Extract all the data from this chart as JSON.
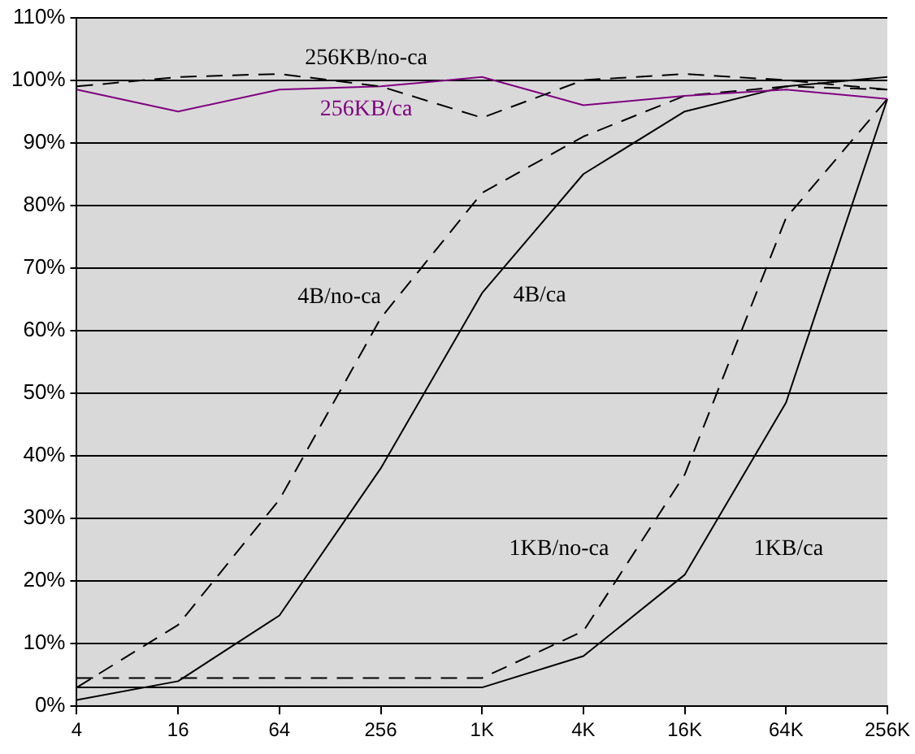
{
  "chart_data": {
    "type": "line",
    "categories": [
      "4",
      "16",
      "64",
      "256",
      "1K",
      "4K",
      "16K",
      "64K",
      "256K"
    ],
    "ylim": [
      0,
      110
    ],
    "yticks": [
      {
        "value": 0,
        "label": "0%"
      },
      {
        "value": 10,
        "label": "10%"
      },
      {
        "value": 20,
        "label": "20%"
      },
      {
        "value": 30,
        "label": "30%"
      },
      {
        "value": 40,
        "label": "40%"
      },
      {
        "value": 50,
        "label": "50%"
      },
      {
        "value": 60,
        "label": "60%"
      },
      {
        "value": 70,
        "label": "70%"
      },
      {
        "value": 80,
        "label": "80%"
      },
      {
        "value": 90,
        "label": "90%"
      },
      {
        "value": 100,
        "label": "100%"
      },
      {
        "value": 110,
        "label": "110%"
      }
    ],
    "grid": "y",
    "legend": false,
    "marker": "none",
    "series": [
      {
        "name": "256KB/no-ca",
        "color": "#000000",
        "line_style": "dashed",
        "values": [
          99,
          100.5,
          101,
          99,
          94,
          100,
          101,
          100,
          98.5
        ]
      },
      {
        "name": "256KB/ca",
        "color": "#800080",
        "line_style": "solid",
        "values": [
          98.5,
          95,
          98.5,
          99,
          100.5,
          96,
          97.5,
          98.5,
          97
        ]
      },
      {
        "name": "4B/no-ca",
        "color": "#000000",
        "line_style": "dashed",
        "values": [
          3,
          13,
          33,
          62,
          82,
          91,
          97.5,
          99,
          98.5
        ]
      },
      {
        "name": "4B/ca",
        "color": "#000000",
        "line_style": "solid",
        "values": [
          1,
          4,
          14.5,
          38,
          66,
          85,
          95,
          99,
          100.5
        ]
      },
      {
        "name": "1KB/no-ca",
        "color": "#000000",
        "line_style": "dashed",
        "values": [
          4.5,
          4.5,
          4.5,
          4.5,
          4.5,
          12,
          37,
          78,
          97
        ]
      },
      {
        "name": "1KB/ca",
        "color": "#000000",
        "line_style": "solid",
        "values": [
          3,
          3,
          3,
          3,
          3,
          8,
          21,
          48.5,
          97
        ]
      }
    ]
  }
}
